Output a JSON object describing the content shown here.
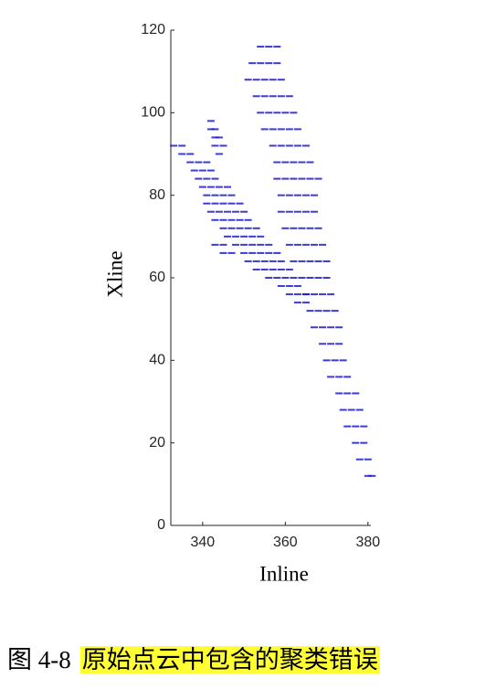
{
  "chart_data": {
    "type": "scatter",
    "xlabel": "Inline",
    "ylabel": "Xline",
    "xlim": [
      332.3,
      380.7
    ],
    "ylim": [
      0,
      120
    ],
    "xticks": [
      340,
      360,
      380
    ],
    "yticks": [
      0,
      20,
      40,
      60,
      80,
      100,
      120
    ],
    "series": [
      {
        "color": "#1a1acc",
        "x": [
          354,
          356,
          358,
          352,
          354,
          356,
          358,
          351,
          353,
          355,
          357,
          359,
          353,
          355,
          357,
          359,
          361,
          354,
          356,
          358,
          360,
          362,
          355,
          357,
          359,
          361,
          363,
          357,
          359,
          361,
          363,
          365,
          358,
          360,
          362,
          364,
          366,
          358,
          360,
          362,
          364,
          366,
          368,
          359,
          361,
          363,
          365,
          367,
          359,
          361,
          363,
          365,
          367,
          360,
          362,
          364,
          366,
          368,
          361,
          363,
          365,
          367,
          369,
          362,
          364,
          366,
          368,
          370,
          364,
          366,
          368,
          370,
          365,
          367,
          369,
          371,
          366,
          368,
          370,
          372,
          367,
          369,
          371,
          373,
          369,
          371,
          373,
          370,
          372,
          374,
          371,
          373,
          375,
          373,
          375,
          377,
          374,
          376,
          378,
          375,
          377,
          379,
          377,
          379,
          378,
          380,
          380,
          381,
          333,
          335,
          335,
          337,
          337,
          339,
          341,
          338,
          340,
          342,
          339,
          341,
          343,
          340,
          342,
          344,
          346,
          341,
          343,
          345,
          347,
          341,
          343,
          345,
          347,
          349,
          342,
          344,
          346,
          348,
          350,
          343,
          345,
          347,
          349,
          351,
          345,
          347,
          349,
          351,
          353,
          346,
          348,
          350,
          352,
          354,
          343,
          345,
          348,
          350,
          352,
          354,
          356,
          345,
          347,
          350,
          352,
          354,
          356,
          358,
          351,
          353,
          355,
          357,
          359,
          353,
          355,
          357,
          359,
          361,
          356,
          358,
          360,
          362,
          359,
          361,
          363,
          361,
          363,
          365,
          363,
          365,
          342,
          342,
          343,
          343,
          344,
          343,
          345,
          344
        ],
        "values": [
          116,
          116,
          116,
          112,
          112,
          112,
          112,
          108,
          108,
          108,
          108,
          108,
          104,
          104,
          104,
          104,
          104,
          100,
          100,
          100,
          100,
          100,
          96,
          96,
          96,
          96,
          96,
          92,
          92,
          92,
          92,
          92,
          88,
          88,
          88,
          88,
          88,
          84,
          84,
          84,
          84,
          84,
          84,
          80,
          80,
          80,
          80,
          80,
          76,
          76,
          76,
          76,
          76,
          72,
          72,
          72,
          72,
          72,
          68,
          68,
          68,
          68,
          68,
          64,
          64,
          64,
          64,
          64,
          60,
          60,
          60,
          60,
          56,
          56,
          56,
          56,
          52,
          52,
          52,
          52,
          48,
          48,
          48,
          48,
          44,
          44,
          44,
          40,
          40,
          40,
          36,
          36,
          36,
          32,
          32,
          32,
          28,
          28,
          28,
          24,
          24,
          24,
          20,
          20,
          16,
          16,
          12,
          12,
          92,
          92,
          90,
          90,
          88,
          88,
          88,
          86,
          86,
          86,
          84,
          84,
          84,
          82,
          82,
          82,
          82,
          80,
          80,
          80,
          80,
          78,
          78,
          78,
          78,
          78,
          76,
          76,
          76,
          76,
          76,
          74,
          74,
          74,
          74,
          74,
          72,
          72,
          72,
          72,
          72,
          70,
          70,
          70,
          70,
          70,
          68,
          68,
          68,
          68,
          68,
          68,
          68,
          66,
          66,
          66,
          66,
          66,
          66,
          66,
          64,
          64,
          64,
          64,
          64,
          62,
          62,
          62,
          62,
          62,
          60,
          60,
          60,
          60,
          58,
          58,
          58,
          56,
          56,
          56,
          54,
          54,
          98,
          96,
          96,
          94,
          94,
          92,
          92,
          90
        ]
      }
    ]
  },
  "figure": {
    "label": "图 4-8",
    "caption": "原始点云中包含的聚类错误"
  }
}
